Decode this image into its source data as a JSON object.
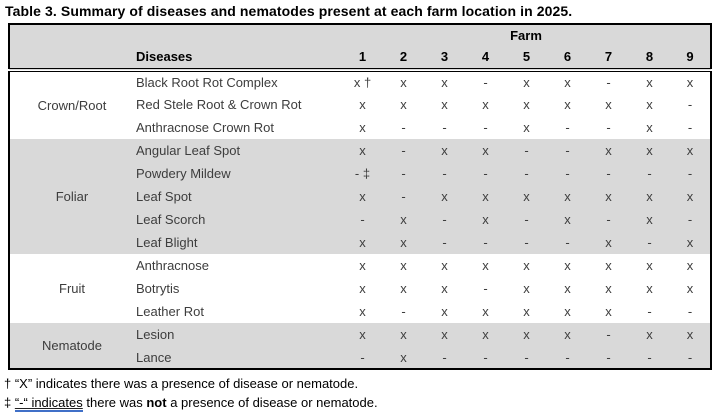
{
  "caption": "Table 3. Summary of diseases and nematodes present at each farm location in 2025.",
  "table": {
    "farm_header": "Farm",
    "diseases_header": "Diseases",
    "farm_columns": [
      "1",
      "2",
      "3",
      "4",
      "5",
      "6",
      "7",
      "8",
      "9"
    ],
    "sections": [
      {
        "category": "Crown/Root",
        "shaded": false,
        "rows": [
          {
            "name": "Black Root Rot Complex",
            "values": [
              "x †",
              "x",
              "x",
              "-",
              "x",
              "x",
              "-",
              "x",
              "x"
            ]
          },
          {
            "name": "Red Stele Root & Crown Rot",
            "values": [
              "x",
              "x",
              "x",
              "x",
              "x",
              "x",
              "x",
              "x",
              "-"
            ]
          },
          {
            "name": "Anthracnose Crown Rot",
            "values": [
              "x",
              "-",
              "-",
              "-",
              "x",
              "-",
              "-",
              "x",
              "-"
            ]
          }
        ]
      },
      {
        "category": "Foliar",
        "shaded": true,
        "rows": [
          {
            "name": "Angular Leaf Spot",
            "values": [
              "x",
              "-",
              "x",
              "x",
              "-",
              "-",
              "x",
              "x",
              "x"
            ]
          },
          {
            "name": "Powdery Mildew",
            "values": [
              "- ‡",
              "-",
              "-",
              "-",
              "-",
              "-",
              "-",
              "-",
              "-"
            ]
          },
          {
            "name": "Leaf Spot",
            "values": [
              "x",
              "-",
              "x",
              "x",
              "x",
              "x",
              "x",
              "x",
              "x"
            ]
          },
          {
            "name": "Leaf Scorch",
            "values": [
              "-",
              "x",
              "-",
              "x",
              "-",
              "x",
              "-",
              "x",
              "-"
            ]
          },
          {
            "name": "Leaf Blight",
            "values": [
              "x",
              "x",
              "-",
              "-",
              "-",
              "-",
              "x",
              "-",
              "x"
            ]
          }
        ]
      },
      {
        "category": "Fruit",
        "shaded": false,
        "rows": [
          {
            "name": "Anthracnose",
            "values": [
              "x",
              "x",
              "x",
              "x",
              "x",
              "x",
              "x",
              "x",
              "x"
            ]
          },
          {
            "name": "Botrytis",
            "values": [
              "x",
              "x",
              "x",
              "-",
              "x",
              "x",
              "x",
              "x",
              "x"
            ]
          },
          {
            "name": "Leather Rot",
            "values": [
              "x",
              "-",
              "x",
              "x",
              "x",
              "x",
              "x",
              "-",
              "-"
            ]
          }
        ]
      },
      {
        "category": "Nematode",
        "shaded": true,
        "rows": [
          {
            "name": "Lesion",
            "values": [
              "x",
              "x",
              "x",
              "x",
              "x",
              "x",
              "-",
              "x",
              "x"
            ]
          },
          {
            "name": "Lance",
            "values": [
              "-",
              "x",
              "-",
              "-",
              "-",
              "-",
              "-",
              "-",
              "-"
            ]
          }
        ]
      }
    ]
  },
  "footnotes": [
    {
      "symbol": "† ",
      "text": "“X” indicates there was a presence of disease or nematode."
    },
    {
      "symbol": "‡ ",
      "underlined": "“-“ indicates",
      "mid": " there was ",
      "bold": "not",
      "post": " a presence of disease or nematode."
    }
  ],
  "colors": {
    "row_shade": "#d9d9d9",
    "body_ink": "#3d3d3d",
    "grammar_underline": "#4070c8"
  }
}
